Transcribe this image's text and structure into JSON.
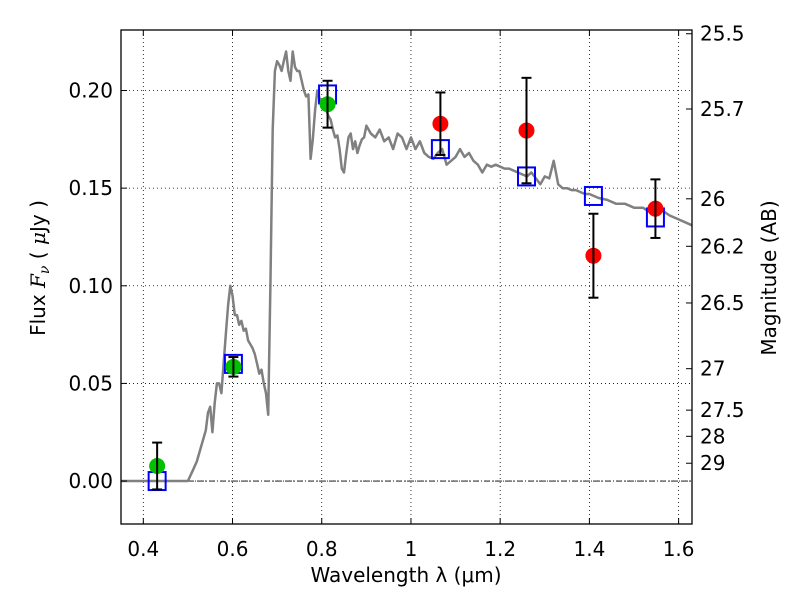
{
  "chart_data": {
    "type": "scatter",
    "title": "",
    "xlabel": "Wavelength  λ (μm)",
    "ylabel": "Flux  Fν  ( μJy )",
    "ylabel_right": "Magnitude (AB)",
    "xlim": [
      0.35,
      1.63
    ],
    "ylim": [
      -0.022,
      0.231
    ],
    "grid": true,
    "x_ticks": [
      0.4,
      0.6,
      0.8,
      1.0,
      1.2,
      1.4,
      1.6
    ],
    "x_tick_labels": [
      "0.4",
      "0.6",
      "0.8",
      "1",
      "1.2",
      "1.4",
      "1.6"
    ],
    "y_ticks": [
      0.0,
      0.05,
      0.1,
      0.15,
      0.2
    ],
    "y_tick_labels": [
      "0.00",
      "0.05",
      "0.10",
      "0.15",
      "0.20"
    ],
    "right_axis": {
      "label": "Magnitude (AB)",
      "zeropoint": 23.9,
      "ticks": [
        25.5,
        25.7,
        26,
        26.2,
        26.5,
        27,
        27.5,
        28,
        29
      ],
      "tick_labels": [
        "25.5",
        "25.7",
        "26",
        "26.2",
        "26.5",
        "27",
        "27.5",
        "28",
        "29"
      ]
    },
    "colors": {
      "model_spectrum": "#808080",
      "optical_points": "#00c000",
      "nir_points": "#ff0000",
      "model_photometry": "#0000ff",
      "errorbar": "#000000",
      "zero_line": "#000000"
    },
    "series": [
      {
        "name": "model spectrum",
        "kind": "line",
        "x": [
          0.35,
          0.4,
          0.45,
          0.5,
          0.51,
          0.52,
          0.53,
          0.54,
          0.545,
          0.55,
          0.555,
          0.56,
          0.565,
          0.57,
          0.575,
          0.58,
          0.585,
          0.59,
          0.595,
          0.6,
          0.605,
          0.61,
          0.615,
          0.62,
          0.625,
          0.63,
          0.635,
          0.64,
          0.645,
          0.65,
          0.655,
          0.66,
          0.665,
          0.67,
          0.675,
          0.68,
          0.685,
          0.69,
          0.695,
          0.7,
          0.705,
          0.71,
          0.715,
          0.72,
          0.725,
          0.73,
          0.735,
          0.74,
          0.745,
          0.75,
          0.755,
          0.76,
          0.765,
          0.77,
          0.775,
          0.78,
          0.785,
          0.79,
          0.795,
          0.8,
          0.805,
          0.81,
          0.815,
          0.82,
          0.825,
          0.83,
          0.835,
          0.84,
          0.845,
          0.85,
          0.855,
          0.86,
          0.865,
          0.87,
          0.875,
          0.88,
          0.885,
          0.89,
          0.895,
          0.9,
          0.91,
          0.92,
          0.93,
          0.94,
          0.95,
          0.96,
          0.97,
          0.98,
          0.99,
          1.0,
          1.01,
          1.02,
          1.03,
          1.04,
          1.05,
          1.06,
          1.07,
          1.08,
          1.09,
          1.1,
          1.11,
          1.12,
          1.13,
          1.14,
          1.15,
          1.16,
          1.17,
          1.18,
          1.19,
          1.2,
          1.21,
          1.22,
          1.23,
          1.24,
          1.25,
          1.26,
          1.27,
          1.28,
          1.29,
          1.3,
          1.31,
          1.32,
          1.33,
          1.34,
          1.35,
          1.36,
          1.37,
          1.38,
          1.39,
          1.4,
          1.42,
          1.44,
          1.46,
          1.48,
          1.5,
          1.52,
          1.54,
          1.56,
          1.58,
          1.6,
          1.62,
          1.63
        ],
        "y": [
          0.0,
          0.0,
          0.0,
          0.0,
          0.005,
          0.01,
          0.018,
          0.026,
          0.035,
          0.038,
          0.025,
          0.04,
          0.05,
          0.05,
          0.045,
          0.06,
          0.075,
          0.09,
          0.1,
          0.095,
          0.085,
          0.085,
          0.08,
          0.082,
          0.077,
          0.078,
          0.072,
          0.07,
          0.068,
          0.065,
          0.06,
          0.055,
          0.057,
          0.05,
          0.045,
          0.034,
          0.1,
          0.18,
          0.21,
          0.215,
          0.213,
          0.21,
          0.215,
          0.22,
          0.21,
          0.205,
          0.22,
          0.212,
          0.21,
          0.21,
          0.205,
          0.2,
          0.197,
          0.198,
          0.165,
          0.175,
          0.19,
          0.2,
          0.196,
          0.194,
          0.192,
          0.19,
          0.187,
          0.185,
          0.18,
          0.176,
          0.177,
          0.17,
          0.16,
          0.158,
          0.168,
          0.176,
          0.178,
          0.17,
          0.174,
          0.168,
          0.172,
          0.175,
          0.176,
          0.182,
          0.178,
          0.176,
          0.18,
          0.174,
          0.176,
          0.17,
          0.178,
          0.176,
          0.17,
          0.176,
          0.17,
          0.174,
          0.168,
          0.166,
          0.165,
          0.168,
          0.17,
          0.162,
          0.164,
          0.166,
          0.17,
          0.166,
          0.168,
          0.164,
          0.162,
          0.158,
          0.162,
          0.161,
          0.162,
          0.161,
          0.16,
          0.16,
          0.159,
          0.158,
          0.157,
          0.156,
          0.158,
          0.155,
          0.152,
          0.156,
          0.155,
          0.164,
          0.152,
          0.15,
          0.15,
          0.149,
          0.149,
          0.148,
          0.147,
          0.147,
          0.145,
          0.144,
          0.142,
          0.142,
          0.14,
          0.14,
          0.137,
          0.139,
          0.136,
          0.134,
          0.132,
          0.131
        ]
      },
      {
        "name": "observed optical",
        "kind": "points-errorbar",
        "color_key": "optical_points",
        "x": [
          0.431,
          0.602,
          0.813
        ],
        "y": [
          0.0077,
          0.0585,
          0.193
        ],
        "yerr": [
          0.012,
          0.005,
          0.012
        ]
      },
      {
        "name": "observed near-IR",
        "kind": "points-errorbar",
        "color_key": "nir_points",
        "x": [
          1.066,
          1.259,
          1.409,
          1.548
        ],
        "y": [
          0.183,
          0.1795,
          0.1154,
          0.1395
        ],
        "yerr": [
          0.016,
          0.027,
          0.0215,
          0.015
        ]
      },
      {
        "name": "model photometry",
        "kind": "open-squares",
        "color_key": "model_photometry",
        "x": [
          0.431,
          0.602,
          0.813,
          1.066,
          1.259,
          1.409,
          1.548
        ],
        "y": [
          0.0,
          0.06,
          0.198,
          0.17,
          0.156,
          0.146,
          0.135
        ]
      }
    ]
  }
}
